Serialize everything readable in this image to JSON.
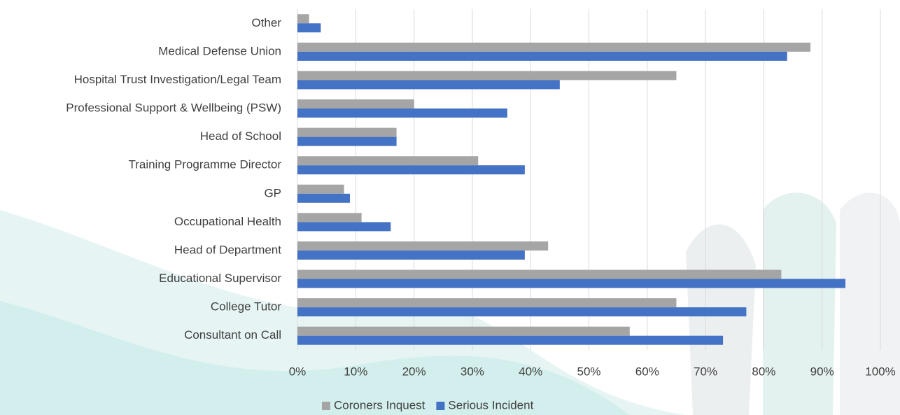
{
  "chart_data": {
    "type": "bar",
    "orientation": "horizontal",
    "categories": [
      "Other",
      "Medical Defense Union",
      "Hospital Trust Investigation/Legal Team",
      "Professional Support & Wellbeing (PSW)",
      "Head of School",
      "Training Programme Director",
      "GP",
      "Occupational Health",
      "Head of Department",
      "Educational Supervisor",
      "College Tutor",
      "Consultant on Call"
    ],
    "series": [
      {
        "name": "Coroners Inquest",
        "color": "#a5a5a5",
        "values": [
          2,
          88,
          65,
          20,
          17,
          31,
          8,
          11,
          43,
          83,
          65,
          57
        ]
      },
      {
        "name": "Serious Incident",
        "color": "#4472c4",
        "values": [
          4,
          84,
          45,
          36,
          17,
          39,
          9,
          16,
          39,
          94,
          77,
          73
        ]
      }
    ],
    "xlim": [
      0,
      100
    ],
    "xticks": [
      {
        "value": 0,
        "label": "0%"
      },
      {
        "value": 10,
        "label": "10%"
      },
      {
        "value": 20,
        "label": "20%"
      },
      {
        "value": 30,
        "label": "30%"
      },
      {
        "value": 40,
        "label": "40%"
      },
      {
        "value": 50,
        "label": "50%"
      },
      {
        "value": 60,
        "label": "60%"
      },
      {
        "value": 70,
        "label": "70%"
      },
      {
        "value": 80,
        "label": "80%"
      },
      {
        "value": 90,
        "label": "90%"
      },
      {
        "value": 100,
        "label": "100%"
      }
    ],
    "grid": true,
    "legend": "bottom"
  }
}
